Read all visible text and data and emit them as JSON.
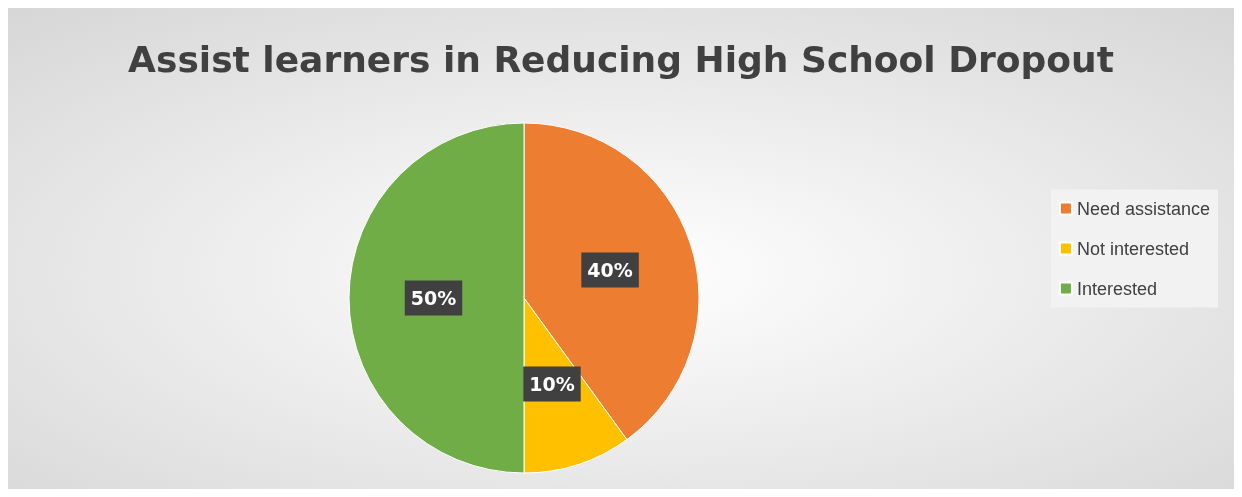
{
  "chart_data": {
    "type": "pie",
    "title": "Assist learners in Reducing High School Dropout",
    "categories": [
      "Need assistance",
      "Not interested",
      "Interested"
    ],
    "values": [
      40,
      10,
      50
    ],
    "colors": [
      "#ed7d31",
      "#ffc000",
      "#70ad47"
    ],
    "value_labels": [
      "40%",
      "10%",
      "50%"
    ],
    "legend": "right"
  }
}
